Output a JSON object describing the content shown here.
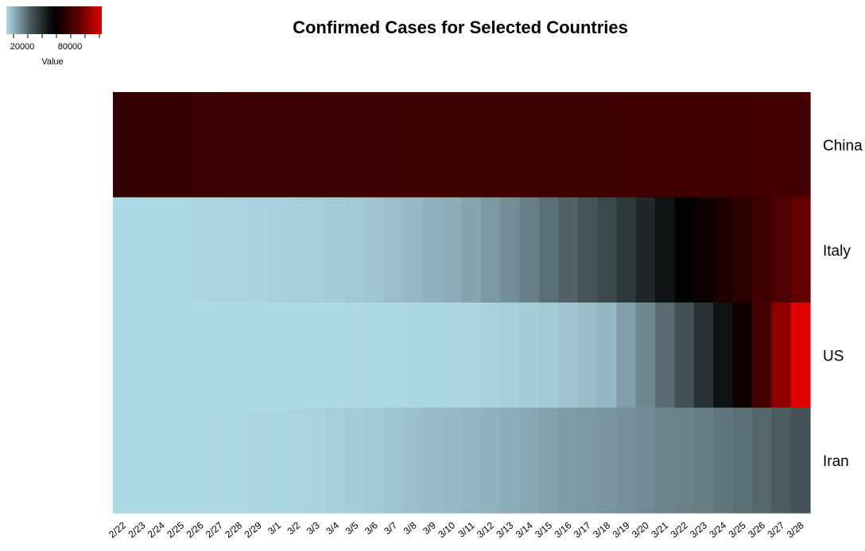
{
  "chart_data": {
    "type": "heatmap",
    "title": "Confirmed Cases for Selected Countries",
    "xlabel": "",
    "ylabel": "",
    "legend": {
      "title": "Value",
      "tick_labels": [
        "20000",
        "80000"
      ],
      "tick_values": [
        20000,
        80000
      ],
      "range": [
        0,
        120000
      ],
      "placement": "top-left",
      "colorscale": [
        "#add8e6",
        "#4a5a5e",
        "#000000",
        "#5a0000",
        "#e00000"
      ]
    },
    "x": [
      "2/22",
      "2/23",
      "2/24",
      "2/25",
      "2/26",
      "2/27",
      "2/28",
      "2/29",
      "3/1",
      "3/2",
      "3/3",
      "3/4",
      "3/5",
      "3/6",
      "3/7",
      "3/8",
      "3/9",
      "3/10",
      "3/11",
      "3/12",
      "3/13",
      "3/14",
      "3/15",
      "3/16",
      "3/17",
      "3/18",
      "3/19",
      "3/20",
      "3/21",
      "3/22",
      "3/23",
      "3/24",
      "3/25",
      "3/26",
      "3/27",
      "3/28"
    ],
    "y": [
      "China",
      "Italy",
      "US",
      "Iran"
    ],
    "values": [
      [
        76399,
        77241,
        77754,
        78166,
        78600,
        78928,
        79356,
        79932,
        80136,
        80261,
        80386,
        80537,
        80690,
        80770,
        80823,
        80860,
        80887,
        80921,
        80932,
        80945,
        80977,
        81003,
        81033,
        81058,
        81102,
        81156,
        81250,
        81305,
        81435,
        81498,
        81591,
        81661,
        81782,
        81897,
        81999,
        82122
      ],
      [
        62,
        155,
        229,
        322,
        453,
        655,
        888,
        1128,
        1694,
        2036,
        2502,
        3089,
        3858,
        4636,
        5883,
        7375,
        9172,
        10149,
        12462,
        15113,
        17660,
        21157,
        24747,
        27980,
        31506,
        35713,
        41035,
        47021,
        53578,
        59138,
        63927,
        69176,
        74386,
        80589,
        86498,
        92472
      ],
      [
        15,
        15,
        15,
        15,
        15,
        15,
        15,
        25,
        30,
        55,
        75,
        105,
        150,
        220,
        320,
        440,
        560,
        710,
        1050,
        1600,
        2180,
        2700,
        3500,
        4600,
        6400,
        7800,
        13600,
        19100,
        25500,
        33200,
        43800,
        53700,
        65800,
        83800,
        101600,
        121500
      ],
      [
        18,
        28,
        43,
        61,
        95,
        139,
        245,
        388,
        593,
        978,
        1501,
        2336,
        2922,
        3513,
        4747,
        5823,
        6566,
        7161,
        8042,
        9000,
        10075,
        11364,
        12729,
        13938,
        14991,
        16169,
        17361,
        18407,
        19644,
        20610,
        21638,
        23049,
        24811,
        27017,
        29406,
        32332
      ]
    ]
  }
}
